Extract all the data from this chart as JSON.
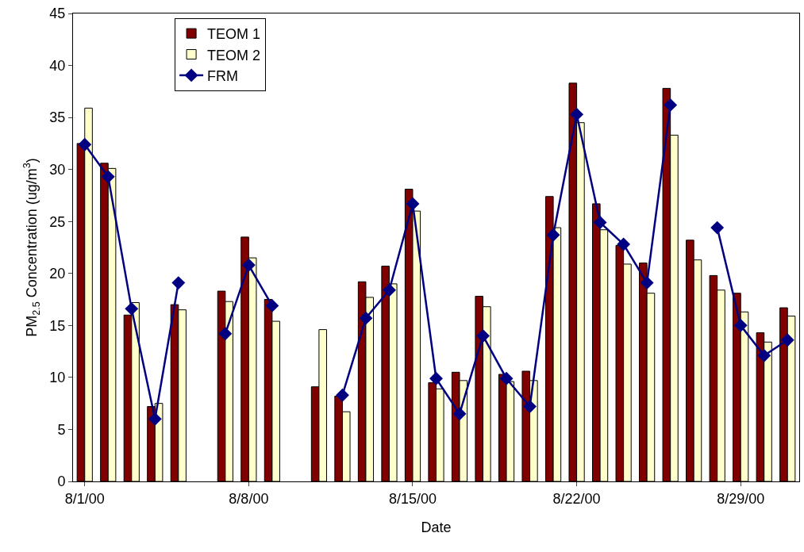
{
  "chart_data": {
    "type": "bar",
    "xlabel": "Date",
    "ylabel": "PM$_{2.5}$ Concentration (ug/m$^{3}$)",
    "x": [
      "2000-08-01",
      "2000-08-02",
      "2000-08-03",
      "2000-08-04",
      "2000-08-05",
      "2000-08-06",
      "2000-08-07",
      "2000-08-08",
      "2000-08-09",
      "2000-08-10",
      "2000-08-11",
      "2000-08-12",
      "2000-08-13",
      "2000-08-14",
      "2000-08-15",
      "2000-08-16",
      "2000-08-17",
      "2000-08-18",
      "2000-08-19",
      "2000-08-20",
      "2000-08-21",
      "2000-08-22",
      "2000-08-23",
      "2000-08-24",
      "2000-08-25",
      "2000-08-26",
      "2000-08-27",
      "2000-08-28",
      "2000-08-29",
      "2000-08-30",
      "2000-08-31"
    ],
    "series": [
      {
        "name": "TEOM 1",
        "color": "#800000",
        "values": [
          32.5,
          30.6,
          16.0,
          7.2,
          17.0,
          null,
          18.3,
          23.5,
          17.5,
          null,
          9.1,
          8.2,
          19.2,
          20.7,
          28.1,
          9.5,
          10.5,
          17.8,
          10.3,
          10.6,
          27.4,
          38.3,
          26.7,
          22.7,
          21.0,
          37.8,
          23.2,
          19.8,
          18.1,
          14.3,
          16.7
        ]
      },
      {
        "name": "TEOM 2",
        "color": "#ffffcc",
        "values": [
          35.9,
          30.1,
          17.2,
          7.5,
          16.5,
          null,
          17.3,
          21.5,
          15.4,
          null,
          14.6,
          6.7,
          17.7,
          19.0,
          26.0,
          8.9,
          9.7,
          16.8,
          9.6,
          9.7,
          24.4,
          34.5,
          24.2,
          20.9,
          18.1,
          33.3,
          21.3,
          18.4,
          16.3,
          13.4,
          15.9
        ]
      },
      {
        "name": "FRM",
        "type": "line",
        "color": "#000080",
        "values": [
          32.4,
          29.3,
          16.6,
          6.0,
          19.1,
          null,
          14.2,
          20.8,
          16.9,
          null,
          null,
          8.3,
          15.7,
          18.4,
          26.7,
          9.9,
          6.5,
          14.0,
          9.9,
          7.2,
          23.7,
          35.3,
          24.9,
          22.8,
          19.1,
          36.2,
          null,
          24.4,
          15.0,
          12.1,
          13.6
        ]
      }
    ],
    "marker": "diamond",
    "line_style": "solid",
    "xlim": [
      "2000-07-31T12:00",
      "2000-08-31T12:00"
    ],
    "xticks": [
      {
        "value": "2000-08-01",
        "label": "8/1/00"
      },
      {
        "value": "2000-08-08",
        "label": "8/8/00"
      },
      {
        "value": "2000-08-15",
        "label": "8/15/00"
      },
      {
        "value": "2000-08-22",
        "label": "8/22/00"
      },
      {
        "value": "2000-08-29",
        "label": "8/29/00"
      }
    ],
    "ylim": [
      0,
      45
    ],
    "yticks": [
      0,
      5,
      10,
      15,
      20,
      25,
      30,
      35,
      40,
      45
    ],
    "grid": false,
    "legend": "top left"
  }
}
